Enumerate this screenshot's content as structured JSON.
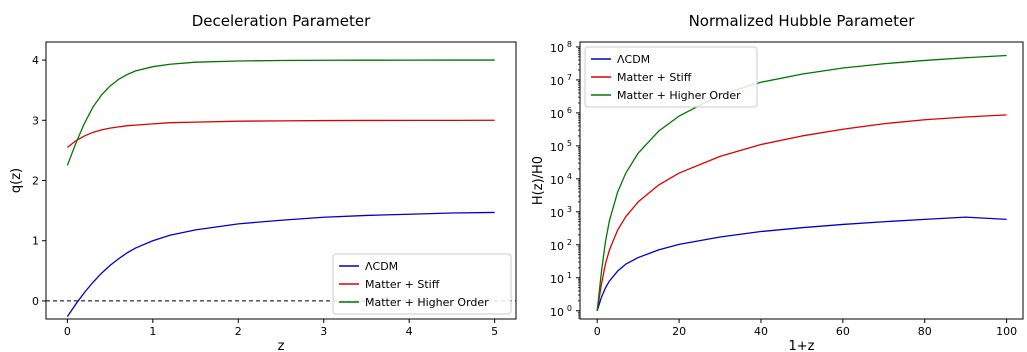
{
  "chart_data": [
    {
      "type": "line",
      "title": "Deceleration Parameter",
      "xlabel": "z",
      "ylabel": "q(z)",
      "xlim": [
        -0.25,
        5.25
      ],
      "ylim": [
        -0.3,
        4.3
      ],
      "xticks": [
        0,
        1,
        2,
        3,
        4,
        5
      ],
      "xtick_labels": [
        "0",
        "1",
        "2",
        "3",
        "4",
        "5"
      ],
      "yticks": [
        0,
        1,
        2,
        3,
        4
      ],
      "ytick_labels": [
        "0",
        "1",
        "2",
        "3",
        "4"
      ],
      "grid": false,
      "legend_position": "bottom-right",
      "reference_line": {
        "y": 0,
        "style": "dashed",
        "color": "#000000"
      },
      "x": [
        0,
        0.1,
        0.2,
        0.3,
        0.4,
        0.5,
        0.6,
        0.7,
        0.8,
        1.0,
        1.2,
        1.5,
        2.0,
        2.5,
        3.0,
        3.5,
        4.0,
        4.5,
        5.0
      ],
      "series": [
        {
          "name": "ΛCDM",
          "color": "#0000cc",
          "values": [
            -0.26,
            -0.05,
            0.14,
            0.31,
            0.46,
            0.59,
            0.7,
            0.8,
            0.88,
            1.0,
            1.09,
            1.18,
            1.28,
            1.34,
            1.39,
            1.42,
            1.44,
            1.46,
            1.47
          ]
        },
        {
          "name": "Matter + Stiff",
          "color": "#dd0000",
          "values": [
            2.55,
            2.66,
            2.74,
            2.8,
            2.84,
            2.87,
            2.89,
            2.91,
            2.92,
            2.94,
            2.96,
            2.97,
            2.985,
            2.99,
            2.995,
            2.997,
            2.998,
            2.999,
            3.0
          ]
        },
        {
          "name": "Matter + Higher Order",
          "color": "#007700",
          "values": [
            2.25,
            2.62,
            2.95,
            3.22,
            3.42,
            3.57,
            3.68,
            3.76,
            3.82,
            3.89,
            3.93,
            3.965,
            3.985,
            3.993,
            3.997,
            3.998,
            3.999,
            4.0,
            4.0
          ]
        }
      ]
    },
    {
      "type": "line",
      "title": "Normalized Hubble Parameter",
      "xlabel": "1+z",
      "ylabel": "H(z)/H0",
      "y_scale": "log",
      "xlim": [
        -4.2,
        104
      ],
      "ylim_log10": [
        -0.25,
        8.15
      ],
      "xticks": [
        0,
        20,
        40,
        60,
        80,
        100
      ],
      "xtick_labels": [
        "0",
        "20",
        "40",
        "60",
        "80",
        "100"
      ],
      "yticks_log10": [
        0,
        1,
        2,
        3,
        4,
        5,
        6,
        7,
        8
      ],
      "ytick_labels": [
        "10",
        "10",
        "10",
        "10",
        "10",
        "10",
        "10",
        "10",
        "10"
      ],
      "ytick_exponents": [
        "0",
        "1",
        "2",
        "3",
        "4",
        "5",
        "6",
        "7",
        "8"
      ],
      "grid": false,
      "legend_position": "top-left",
      "x": [
        0,
        1,
        2,
        3,
        5,
        7,
        10,
        15,
        20,
        30,
        40,
        50,
        60,
        70,
        80,
        90,
        100
      ],
      "series": [
        {
          "name": "ΛCDM",
          "color": "#0000cc",
          "values": [
            1,
            2.5,
            4.9,
            8.0,
            16,
            26,
            41,
            70,
            103,
            172,
            253,
            330,
            415,
            500,
            590,
            690,
            590
          ]
        },
        {
          "name": "Matter + Stiff",
          "color": "#dd0000",
          "values": [
            1,
            6,
            26,
            70,
            280,
            720,
            2000,
            6500,
            15000,
            48000,
            110000,
            200000,
            320000,
            470000,
            620000,
            750000,
            870000
          ]
        },
        {
          "name": "Matter + Higher Order",
          "color": "#007700",
          "values": [
            1,
            14,
            120,
            550,
            4000,
            15000,
            60000,
            280000,
            800000,
            3500000,
            8500000,
            15000000,
            23000000,
            31000000,
            39000000,
            47000000,
            55000000
          ]
        }
      ]
    }
  ]
}
